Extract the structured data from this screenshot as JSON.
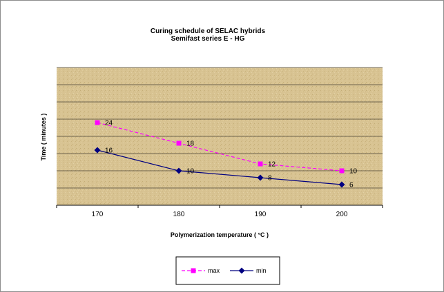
{
  "chart_data": {
    "type": "line",
    "title": "Curing schedule of SELAC hybrids",
    "subtitle": "Semifast series E - HG",
    "xlabel": "Polymerization temperature ( °C )",
    "ylabel": "Time ( minutes )",
    "categories": [
      "170",
      "180",
      "190",
      "200"
    ],
    "ylim": [
      0,
      40
    ],
    "grid": true,
    "legend_position": "bottom",
    "series": [
      {
        "name": "max",
        "values": [
          24,
          18,
          12,
          10
        ],
        "color": "#ff00ff",
        "line_style": "dashed",
        "marker": "square"
      },
      {
        "name": "min",
        "values": [
          16,
          10,
          8,
          6
        ],
        "color": "#000080",
        "line_style": "solid",
        "marker": "diamond"
      }
    ]
  }
}
